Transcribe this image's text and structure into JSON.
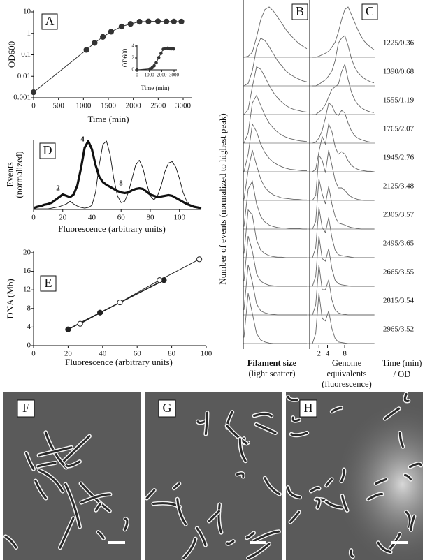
{
  "chart_data": [
    {
      "type": "line",
      "label": "A",
      "x_label": "Time (min)",
      "y_label": "OD600",
      "ylog": true,
      "xlim": [
        0,
        3000
      ],
      "xticks": [
        0,
        500,
        1000,
        1500,
        2000,
        2500,
        3000
      ],
      "ylim": [
        0.001,
        10
      ],
      "yticks": [
        0.001,
        0.01,
        0.1,
        1,
        10
      ],
      "series": [
        {
          "color": "#333333",
          "marker": "filled",
          "linewidth": 1,
          "x": [
            0,
            1060,
            1225,
            1390,
            1555,
            1765,
            1945,
            2125,
            2305,
            2495,
            2665,
            2815,
            2965
          ],
          "values": [
            0.0018,
            0.17,
            0.36,
            0.68,
            1.19,
            2.07,
            2.76,
            3.48,
            3.57,
            3.65,
            3.55,
            3.54,
            3.52
          ]
        }
      ]
    },
    {
      "type": "line",
      "x_label": "Time (min)",
      "y_label": "OD600",
      "xlim": [
        0,
        3000
      ],
      "xticks": [
        0,
        1000,
        2000,
        3000
      ],
      "ylim": [
        0,
        4
      ],
      "yticks": [
        0,
        2,
        4
      ],
      "series": [
        {
          "color": "#333333",
          "marker": "filled",
          "linewidth": 1,
          "x": [
            0,
            1060,
            1225,
            1390,
            1555,
            1765,
            1945,
            2125,
            2305,
            2495,
            2665,
            2815,
            2965
          ],
          "values": [
            0.0018,
            0.17,
            0.36,
            0.68,
            1.19,
            2.07,
            2.76,
            3.48,
            3.57,
            3.65,
            3.55,
            3.54,
            3.52
          ]
        }
      ]
    },
    {
      "type": "line",
      "label": "D",
      "x_label": "Fluorescence (arbitrary units)",
      "y_label": [
        "Events",
        "(normalized)"
      ],
      "annotations": [
        "2",
        "4",
        "8"
      ],
      "xlim": [
        0,
        115
      ],
      "xticks": [
        0,
        20,
        40,
        60,
        80,
        100
      ],
      "ylim": [
        0,
        1
      ],
      "x": [
        0,
        2.5,
        5,
        7.5,
        10,
        12.5,
        15,
        17.5,
        20,
        22.5,
        25,
        27.5,
        30,
        32.5,
        35,
        37.5,
        40,
        42.5,
        45,
        47.5,
        50,
        52.5,
        55,
        57.5,
        60,
        62.5,
        65,
        67.5,
        70,
        72.5,
        75,
        77.5,
        80,
        82.5,
        85,
        87.5,
        90,
        92.5,
        95,
        97.5,
        100,
        102.5,
        105,
        107.5,
        110,
        112.5,
        115
      ],
      "series": [
        {
          "color": "#111111",
          "linewidth": 3.2,
          "values": [
            0.02,
            0.04,
            0.05,
            0.07,
            0.08,
            0.1,
            0.14,
            0.18,
            0.22,
            0.2,
            0.18,
            0.22,
            0.35,
            0.6,
            0.9,
            1.0,
            0.88,
            0.65,
            0.48,
            0.4,
            0.36,
            0.33,
            0.3,
            0.27,
            0.25,
            0.24,
            0.25,
            0.28,
            0.3,
            0.31,
            0.3,
            0.26,
            0.22,
            0.2,
            0.18,
            0.19,
            0.2,
            0.21,
            0.2,
            0.17,
            0.14,
            0.11,
            0.08,
            0.06,
            0.04,
            0.03,
            0.02
          ]
        },
        {
          "color": "#111111",
          "linewidth": 0.9,
          "values": [
            0.01,
            0.01,
            0.01,
            0.01,
            0.01,
            0.02,
            0.03,
            0.04,
            0.06,
            0.08,
            0.12,
            0.08,
            0.05,
            0.03,
            0.02,
            0.03,
            0.06,
            0.25,
            0.65,
            0.95,
            1.0,
            0.8,
            0.45,
            0.2,
            0.1,
            0.12,
            0.25,
            0.45,
            0.65,
            0.72,
            0.6,
            0.38,
            0.2,
            0.14,
            0.2,
            0.35,
            0.55,
            0.68,
            0.7,
            0.62,
            0.45,
            0.25,
            0.12,
            0.06,
            0.03,
            0.02,
            0.01
          ]
        }
      ]
    },
    {
      "type": "line",
      "label": "E",
      "x_label": "Fluorescence (arbitrary units)",
      "y_label": "DNA (Mb)",
      "xlim": [
        0,
        100
      ],
      "xticks": [
        0,
        20,
        40,
        60,
        80,
        100
      ],
      "ylim": [
        0,
        20
      ],
      "yticks": [
        0,
        4,
        8,
        12,
        16,
        20
      ],
      "series": [
        {
          "color": "#222222",
          "marker": "filled",
          "linewidth": 1.6,
          "x": [
            20,
            38.5,
            75.5
          ],
          "values": [
            3.5,
            7.1,
            14.1
          ]
        },
        {
          "color": "#222222",
          "marker": "open",
          "linewidth": 1,
          "x": [
            27,
            50,
            73,
            96
          ],
          "values": [
            4.7,
            9.3,
            14.1,
            18.6
          ]
        }
      ]
    },
    {
      "type": "ridgeline",
      "y_label": "Number of events (normalized to highest peak)",
      "row_labels": [
        "1225/0.36",
        "1390/0.68",
        "1555/1.19",
        "1765/2.07",
        "1945/2.76",
        "2125/3.48",
        "2305/3.57",
        "2495/3.65",
        "2665/3.55",
        "2815/3.54",
        "2965/3.52"
      ],
      "row_title": [
        "Time (min)",
        "/ OD"
      ],
      "panels": [
        {
          "label": "B",
          "x_label": [
            "Filament size",
            "(light scatter)"
          ],
          "series": [
            {
              "values": [
                0,
                0.02,
                0.1,
                0.4,
                0.75,
                0.95,
                1,
                0.92,
                0.8,
                0.68,
                0.55,
                0.45,
                0.36,
                0.28,
                0.22,
                0.17
              ]
            },
            {
              "values": [
                0,
                0.05,
                0.3,
                0.75,
                0.95,
                0.9,
                0.78,
                0.64,
                0.5,
                0.4,
                0.3,
                0.23,
                0.18,
                0.14,
                0.1,
                0.08
              ]
            },
            {
              "values": [
                0,
                0.1,
                0.55,
                0.95,
                0.9,
                0.75,
                0.58,
                0.44,
                0.33,
                0.25,
                0.18,
                0.13,
                0.1,
                0.08,
                0.06,
                0.05
              ]
            },
            {
              "values": [
                0,
                0.2,
                0.8,
                0.95,
                0.75,
                0.55,
                0.4,
                0.3,
                0.22,
                0.16,
                0.12,
                0.09,
                0.07,
                0.05,
                0.04,
                0.03
              ]
            },
            {
              "values": [
                0,
                0.35,
                0.95,
                0.8,
                0.55,
                0.38,
                0.27,
                0.19,
                0.14,
                0.1,
                0.07,
                0.05,
                0.04,
                0.03,
                0.02,
                0.02
              ]
            },
            {
              "values": [
                0.02,
                0.6,
                1,
                0.7,
                0.42,
                0.26,
                0.17,
                0.11,
                0.08,
                0.05,
                0.04,
                0.03,
                0.02,
                0.02,
                0.01,
                0.01
              ]
            },
            {
              "values": [
                0.05,
                0.8,
                0.95,
                0.5,
                0.25,
                0.14,
                0.08,
                0.05,
                0.03,
                0.02,
                0.02,
                0.01,
                0.01,
                0.01,
                0,
                0
              ]
            },
            {
              "values": [
                0.08,
                0.95,
                0.85,
                0.35,
                0.15,
                0.08,
                0.04,
                0.02,
                0.01,
                0.01,
                0,
                0,
                0,
                0,
                0,
                0
              ]
            },
            {
              "values": [
                0.1,
                1,
                0.7,
                0.25,
                0.1,
                0.05,
                0.02,
                0.01,
                0,
                0,
                0,
                0,
                0,
                0,
                0,
                0
              ]
            },
            {
              "values": [
                0.1,
                1,
                0.65,
                0.22,
                0.08,
                0.04,
                0.02,
                0.01,
                0,
                0,
                0,
                0,
                0,
                0,
                0,
                0
              ]
            },
            {
              "values": [
                0.12,
                1,
                0.6,
                0.2,
                0.07,
                0.03,
                0.01,
                0,
                0,
                0,
                0,
                0,
                0,
                0,
                0,
                0
              ]
            }
          ]
        },
        {
          "label": "C",
          "x_label": [
            "Genome",
            "equivalents",
            "(fluorescence)"
          ],
          "xlim": [
            0,
            15
          ],
          "xticks": [
            2,
            4,
            8
          ],
          "series": [
            {
              "values": [
                0,
                0,
                0.02,
                0.05,
                0.08,
                0.12,
                0.2,
                0.3,
                0.5,
                0.75,
                0.95,
                1,
                0.85,
                0.7,
                0.55,
                0.42,
                0.32,
                0.25,
                0.2,
                0.15
              ]
            },
            {
              "values": [
                0,
                0,
                0.03,
                0.08,
                0.12,
                0.2,
                0.3,
                0.5,
                0.85,
                0.95,
                1,
                0.8,
                0.55,
                0.38,
                0.27,
                0.2,
                0.15,
                0.11,
                0.08,
                0.06
              ]
            },
            {
              "values": [
                0,
                0,
                0.05,
                0.1,
                0.2,
                0.35,
                0.5,
                0.55,
                0.6,
                0.85,
                1,
                0.7,
                0.45,
                0.3,
                0.2,
                0.14,
                0.1,
                0.07,
                0.05,
                0.04
              ]
            },
            {
              "values": [
                0,
                0.02,
                0.1,
                0.25,
                0.5,
                0.8,
                0.75,
                0.6,
                0.55,
                0.65,
                0.6,
                0.4,
                0.25,
                0.15,
                0.1,
                0.07,
                0.05,
                0.03,
                0.02,
                0.02
              ]
            },
            {
              "values": [
                0,
                0.05,
                0.4,
                0.7,
                0.55,
                0.95,
                0.8,
                0.5,
                0.35,
                0.4,
                0.35,
                0.22,
                0.13,
                0.08,
                0.05,
                0.03,
                0.02,
                0.01,
                0.01,
                0
              ]
            },
            {
              "values": [
                0,
                0.1,
                0.9,
                0.8,
                0.55,
                1,
                0.7,
                0.4,
                0.25,
                0.25,
                0.2,
                0.12,
                0.07,
                0.04,
                0.02,
                0.01,
                0,
                0,
                0,
                0
              ]
            },
            {
              "values": [
                0,
                0.15,
                1,
                0.7,
                0.5,
                0.85,
                0.5,
                0.25,
                0.12,
                0.1,
                0.08,
                0.05,
                0.03,
                0.02,
                0.01,
                0,
                0,
                0,
                0,
                0
              ]
            },
            {
              "values": [
                0,
                0.2,
                1,
                0.6,
                0.5,
                0.8,
                0.4,
                0.15,
                0.06,
                0.04,
                0.03,
                0.02,
                0.01,
                0,
                0,
                0,
                0,
                0,
                0,
                0
              ]
            },
            {
              "values": [
                0,
                0.2,
                1,
                0.55,
                0.5,
                0.75,
                0.35,
                0.12,
                0.05,
                0.03,
                0.02,
                0.01,
                0,
                0,
                0,
                0,
                0,
                0,
                0,
                0
              ]
            },
            {
              "values": [
                0,
                0.2,
                1,
                0.5,
                0.5,
                0.7,
                0.3,
                0.1,
                0.04,
                0.02,
                0.01,
                0,
                0,
                0,
                0,
                0,
                0,
                0,
                0,
                0
              ]
            },
            {
              "values": [
                0,
                0.2,
                1,
                0.5,
                0.45,
                0.65,
                0.3,
                0.1,
                0.03,
                0.02,
                0.01,
                0,
                0,
                0,
                0,
                0,
                0,
                0,
                0,
                0
              ]
            }
          ]
        }
      ]
    }
  ],
  "micrographs": {
    "panels": [
      {
        "label": "F"
      },
      {
        "label": "G"
      },
      {
        "label": "H"
      }
    ]
  }
}
